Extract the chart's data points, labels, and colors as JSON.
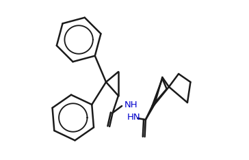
{
  "bg_color": "#ffffff",
  "line_color": "#1a1a1a",
  "nh_color": "#0000cd",
  "lw": 1.8,
  "font_size": 9.5,
  "figsize": [
    3.64,
    2.34
  ],
  "dpi": 100
}
